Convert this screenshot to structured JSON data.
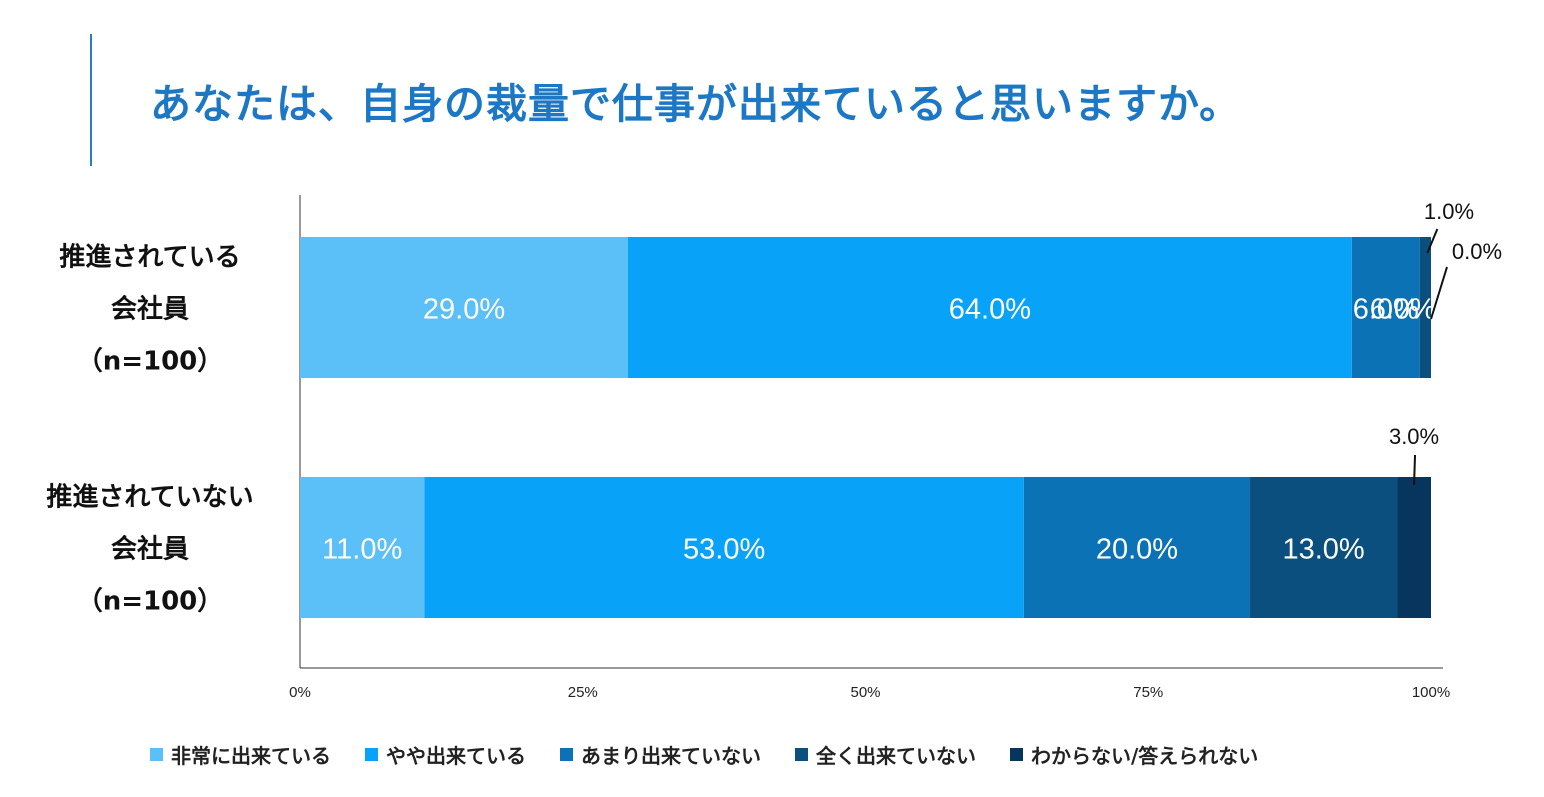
{
  "title": "あなたは、自身の裁量で仕事が出来ていると思いますか。",
  "chart_data": {
    "type": "bar",
    "orientation": "horizontal",
    "stacked": true,
    "categories": [
      [
        "推進されている",
        "会社員",
        "（n=100）"
      ],
      [
        "推進されていない",
        "会社員",
        "（n=100）"
      ]
    ],
    "series": [
      {
        "name": "非常に出来ている",
        "color": "#5bbff8",
        "values": [
          29.0,
          11.0
        ],
        "labels": [
          "29.0%",
          "11.0%"
        ]
      },
      {
        "name": "やや出来ている",
        "color": "#08a2f9",
        "values": [
          64.0,
          53.0
        ],
        "labels": [
          "64.0%",
          "53.0%"
        ]
      },
      {
        "name": "あまり出来ていない",
        "color": "#0b72b6",
        "values": [
          6.0,
          20.0
        ],
        "labels": [
          "6.0%",
          "20.0%"
        ]
      },
      {
        "name": "全く出来ていない",
        "color": "#0b4f7f",
        "values": [
          1.0,
          13.0
        ],
        "labels": [
          "1.0%",
          "13.0%"
        ]
      },
      {
        "name": "わからない/答えられない",
        "color": "#07355e",
        "values": [
          0.0,
          3.0
        ],
        "labels": [
          "0.0%",
          "3.0%"
        ]
      }
    ],
    "xlim": [
      0,
      100
    ],
    "xticks": [
      "0%",
      "25%",
      "50%",
      "75%",
      "100%"
    ],
    "legend_position": "bottom",
    "grid": false
  }
}
